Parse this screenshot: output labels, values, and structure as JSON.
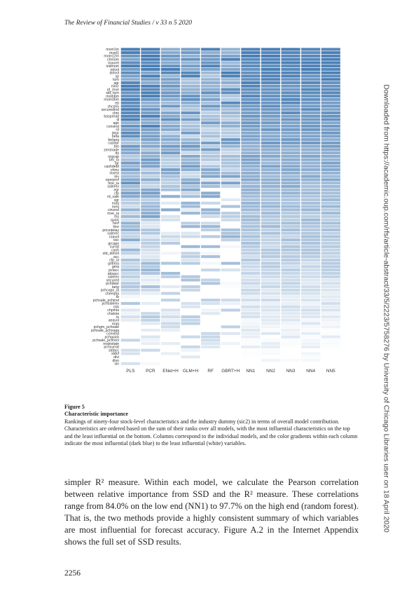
{
  "running_head": "The Review of Financial Studies / v 33 n 5 2020",
  "sidebar_text": "Downloaded from https://academic.oup.com/rfs/article-abstract/33/5/2223/5758276 by University of Chicago Libraries user on 18 April 2020",
  "figure": {
    "label": "Figure 5",
    "title": "Characteristic importance",
    "caption": "Rankings of ninety-four stock-level characteristics and the industry dummy (sic2) in terms of overall model contribution. Characteristics are ordered based on the sum of their ranks over all models, with the most influential characteristics on the top and the least influential on the bottom. Columns correspond to the individual models, and the color gradients within each column indicate the most influential (dark blue) to the least influential (white) variables."
  },
  "chart_data": {
    "type": "heatmap",
    "title": "",
    "xlabel": "",
    "ylabel": "",
    "color_dark": "#4a7fb5",
    "color_light": "#ffffff",
    "columns": [
      "PLS",
      "PCR",
      "ENet+H",
      "GLM+H",
      "RF",
      "GBRT+H",
      "NN1",
      "NN2",
      "NN3",
      "NN4",
      "NN5"
    ],
    "rows": [
      "mom1m",
      "mvel1",
      "mom12m",
      "chmom",
      "maxret",
      "indmom",
      "retvol",
      "dolvol",
      "sp",
      "turn",
      "agr",
      "nincr",
      "rd_mve",
      "std_turn",
      "mom6m",
      "mom36m",
      "ep",
      "chcsho",
      "securedind",
      "chtx",
      "baspread",
      "ill",
      "age",
      "convind",
      "rd",
      "depr",
      "beta",
      "betasq",
      "cashpr",
      "bm",
      "zerotrade",
      "dy",
      "orgcap",
      "bm_ia",
      "lgr",
      "cashdebt",
      "chinv",
      "invest",
      "lev",
      "operprof",
      "hire_ia",
      "salerev",
      "egr",
      "cfp",
      "rd_sale",
      "sgr",
      "roaq",
      "roeq",
      "cinvest",
      "mve_ia",
      "ms",
      "quick",
      "herf",
      "hire",
      "pricedelay",
      "salerec",
      "roavol",
      "roic",
      "grcapx",
      "currat",
      "cash",
      "std_dolvol",
      "acc",
      "cfp_ia",
      "grltnoa",
      "gma",
      "pctacc",
      "absacc",
      "saleinv",
      "secured",
      "pchdepr",
      "tang",
      "pchcapx_ia",
      "chempia",
      "tb",
      "pchsale_pchinvt",
      "pchsaleinv",
      "ctrk",
      "chpmia",
      "chatoia",
      "ts",
      "aeavol",
      "roaq2",
      "pchgm_pchsale",
      "pchsale_pchxsga",
      "convind2",
      "pchquick",
      "pchsale_pchrect",
      "realestate",
      "pchcurrat",
      "stdacc",
      "stdcf",
      "divi",
      "divo",
      "sin"
    ],
    "display_rows": [
      "mom1m",
      "mvel1",
      "mom12m",
      "chmom",
      "maxret",
      "indmom",
      "retvol",
      "dolvol",
      "sp",
      "turn",
      "agr",
      "nincr",
      "rd_mve",
      "std_turn",
      "mom6m",
      "mom36m",
      "ep",
      "chcsho",
      "securedind",
      "chtx",
      "baspread",
      "ill",
      "age",
      "convind",
      "rd",
      "depr",
      "beta",
      "betasq",
      "cashpr",
      "bm",
      "zerotrade",
      "dy",
      "orgcap",
      "bm_ia",
      "lgr",
      "cashdebt",
      "chinv",
      "invest",
      "lev",
      "operprof",
      "hire_ia",
      "salerev",
      "egr",
      "cfp",
      "rd_sale",
      "sgr",
      "roaq",
      "roeq",
      "cinvest",
      "mve_ia",
      "ms",
      "quick",
      "herf",
      "hire",
      "pricedelay",
      "salerec",
      "roavol",
      "roic",
      "grcapx",
      "currat",
      "cash",
      "std_dolvol",
      "acc",
      "cfp_ia",
      "grltnoa",
      "gma",
      "pctacc",
      "absacc",
      "saleinv",
      "secured",
      "pchdepr",
      "tang",
      "pchcapx_ia",
      "chempia",
      "tb",
      "pchsale_pchinvt",
      "pchsaleinv",
      "ctrk",
      "chpmia",
      "chatoia",
      "ts",
      "aeavol",
      "roaq",
      "pchgm_pchsale",
      "pchsale_pchxsga",
      "convind",
      "pchquick",
      "pchsale_pchrect",
      "realestate",
      "pchcurrat",
      "stdacc",
      "stdcf",
      "divi",
      "divo",
      "sin"
    ]
  },
  "body_text": "simpler R² measure. Within each model, we calculate the Pearson correlation between relative importance from SSD and the R² measure. These correlations range from 84.0% on the low end (NN1) to 97.7% on the high end (random forest). That is, the two methods provide a highly consistent summary of which variables are most influential for forecast accuracy. Figure A.2 in the Internet Appendix shows the full set of SSD results.",
  "folio": "2256"
}
